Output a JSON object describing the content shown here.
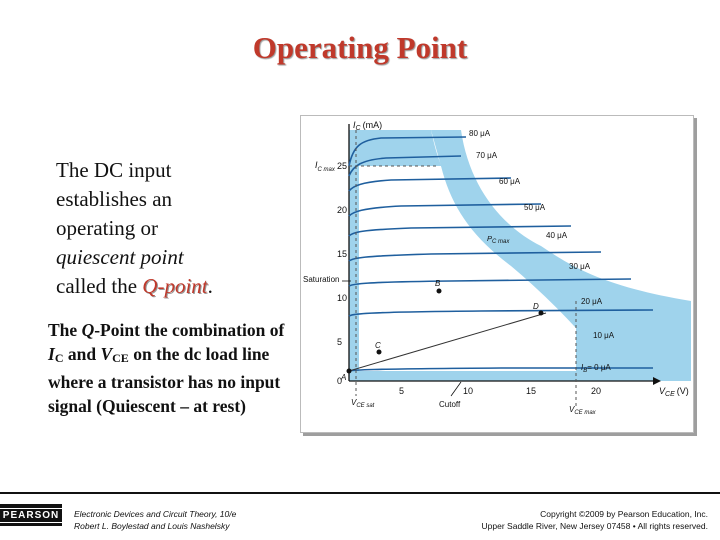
{
  "title": "Operating Point",
  "para1": {
    "l1": "The DC input",
    "l2": "establishes an",
    "l3": "operating or",
    "l4": "quiescent point",
    "l5_pre": "called the ",
    "l5_q": "Q-point",
    "l5_post": "."
  },
  "para2": {
    "a": "The ",
    "q": "Q",
    "b": "-Point the combination of ",
    "ic": "I",
    "ic_sub": "C",
    "c": " and ",
    "vce": "V",
    "vce_sub": "CE",
    "d": " on the dc load line where a transistor has no input signal (Quiescent – at rest)"
  },
  "figure": {
    "y_axis_label": "(mA)",
    "y_axis_symbol": "I",
    "y_axis_sub": "C",
    "x_axis_symbol": "V",
    "x_axis_sub": "CE",
    "x_axis_unit": "(V)",
    "icmax_label": "I",
    "icmax_sub": "C max",
    "pcmax_label": "P",
    "pcmax_sub": "C max",
    "saturation_label": "Saturation",
    "cutoff_label": "Cutoff",
    "vcesat_label": "V",
    "vcesat_sub": "CE sat",
    "vcemax_label": "V",
    "vcemax_sub": "CE max",
    "y_ticks": [
      "25",
      "20",
      "15",
      "10",
      "5",
      "0"
    ],
    "x_ticks": [
      "5",
      "10",
      "15",
      "20"
    ],
    "curve_labels": [
      "80 μA",
      "70 μA",
      "60 μA",
      "50 μA",
      "40 μA",
      "30 μA",
      "20 μA",
      "10 μA",
      "I",
      "= 0 μA"
    ],
    "ib_sub": "B",
    "points": [
      "A",
      "B",
      "C",
      "D"
    ]
  },
  "footer": {
    "logo": "PEARSON",
    "book_line1": "Electronic Devices and Circuit Theory, 10/e",
    "book_line2": "Robert L. Boylestad and Louis Nashelsky",
    "copy_line1": "Copyright ©2009 by Pearson Education, Inc.",
    "copy_line2": "Upper Saddle River, New Jersey 07458 • All rights reserved."
  },
  "colors": {
    "title": "#c0392b",
    "shade": "#9fd3ec",
    "curve": "#1f5f9e"
  }
}
